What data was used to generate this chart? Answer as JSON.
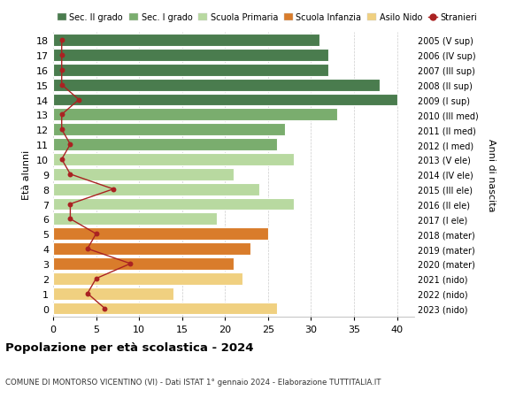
{
  "ages": [
    18,
    17,
    16,
    15,
    14,
    13,
    12,
    11,
    10,
    9,
    8,
    7,
    6,
    5,
    4,
    3,
    2,
    1,
    0
  ],
  "right_labels": [
    "2005 (V sup)",
    "2006 (IV sup)",
    "2007 (III sup)",
    "2008 (II sup)",
    "2009 (I sup)",
    "2010 (III med)",
    "2011 (II med)",
    "2012 (I med)",
    "2013 (V ele)",
    "2014 (IV ele)",
    "2015 (III ele)",
    "2016 (II ele)",
    "2017 (I ele)",
    "2018 (mater)",
    "2019 (mater)",
    "2020 (mater)",
    "2021 (nido)",
    "2022 (nido)",
    "2023 (nido)"
  ],
  "bar_values": [
    31,
    32,
    32,
    38,
    40,
    33,
    27,
    26,
    28,
    21,
    24,
    28,
    19,
    25,
    23,
    21,
    22,
    14,
    26
  ],
  "bar_colors": [
    "#4a7c4e",
    "#4a7c4e",
    "#4a7c4e",
    "#4a7c4e",
    "#4a7c4e",
    "#7aad6e",
    "#7aad6e",
    "#7aad6e",
    "#b8d9a0",
    "#b8d9a0",
    "#b8d9a0",
    "#b8d9a0",
    "#b8d9a0",
    "#d97c2b",
    "#d97c2b",
    "#d97c2b",
    "#f0d080",
    "#f0d080",
    "#f0d080"
  ],
  "stranieri_x": [
    1,
    1,
    1,
    1,
    3,
    1,
    1,
    2,
    1,
    2,
    7,
    2,
    2,
    5,
    4,
    9,
    5,
    4,
    6
  ],
  "legend_labels": [
    "Sec. II grado",
    "Sec. I grado",
    "Scuola Primaria",
    "Scuola Infanzia",
    "Asilo Nido",
    "Stranieri"
  ],
  "legend_colors": [
    "#4a7c4e",
    "#7aad6e",
    "#b8d9a0",
    "#d97c2b",
    "#f0d080",
    "#aa2222"
  ],
  "ylabel": "Età alunni",
  "right_ylabel": "Anni di nascita",
  "title": "Popolazione per età scolastica - 2024",
  "subtitle": "COMUNE DI MONTORSO VICENTINO (VI) - Dati ISTAT 1° gennaio 2024 - Elaborazione TUTTITALIA.IT",
  "xlim": [
    0,
    42
  ],
  "xticks": [
    0,
    5,
    10,
    15,
    20,
    25,
    30,
    35,
    40
  ],
  "bg_color": "#ffffff",
  "bar_height": 0.82,
  "stranieri_color": "#aa2222"
}
